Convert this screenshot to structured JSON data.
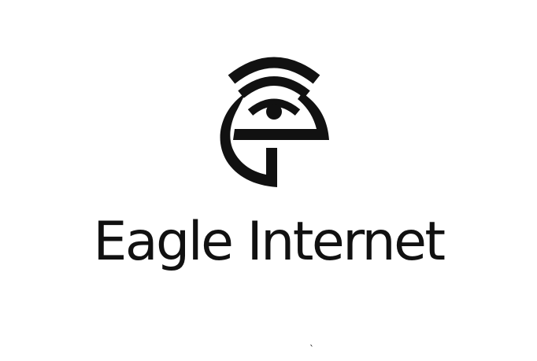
{
  "logo": {
    "icon": "wifi-e-icon",
    "text": "Eagle Internet",
    "color": "#111111"
  },
  "stray_mark": "`"
}
